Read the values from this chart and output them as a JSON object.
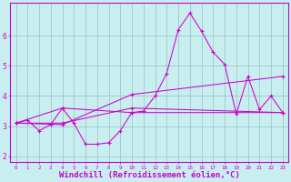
{
  "background_color": "#c8eef0",
  "grid_color": "#a0c8c8",
  "line_color": "#cc00cc",
  "xlabel": "Windchill (Refroidissement éolien,°C)",
  "xlabel_fontsize": 6.5,
  "ylabel_values": [
    2,
    3,
    4,
    5,
    6
  ],
  "xlim": [
    -0.5,
    23.5
  ],
  "ylim": [
    1.8,
    7.1
  ],
  "xtick_labels": [
    "0",
    "1",
    "2",
    "3",
    "4",
    "5",
    "6",
    "7",
    "8",
    "9",
    "10",
    "11",
    "12",
    "13",
    "14",
    "15",
    "16",
    "17",
    "18",
    "19",
    "20",
    "21",
    "22",
    "23"
  ],
  "series1_x": [
    0,
    1,
    2,
    3,
    4,
    5,
    6,
    7,
    8,
    9,
    10,
    11,
    12,
    13,
    14,
    15,
    16,
    17,
    18,
    19,
    20,
    21,
    22,
    23
  ],
  "series1_y": [
    3.1,
    3.2,
    2.85,
    3.05,
    3.6,
    3.1,
    2.4,
    2.4,
    2.45,
    2.85,
    3.45,
    3.5,
    4.0,
    4.75,
    6.2,
    6.75,
    6.15,
    5.45,
    5.05,
    3.4,
    4.65,
    3.55,
    4.0,
    3.45
  ],
  "series2_x": [
    0,
    4,
    10,
    23
  ],
  "series2_y": [
    3.1,
    3.6,
    3.45,
    3.45
  ],
  "series3_x": [
    0,
    4,
    10,
    23
  ],
  "series3_y": [
    3.1,
    3.1,
    3.6,
    3.45
  ],
  "series4_x": [
    0,
    4,
    10,
    23
  ],
  "series4_y": [
    3.1,
    3.05,
    4.05,
    4.65
  ]
}
